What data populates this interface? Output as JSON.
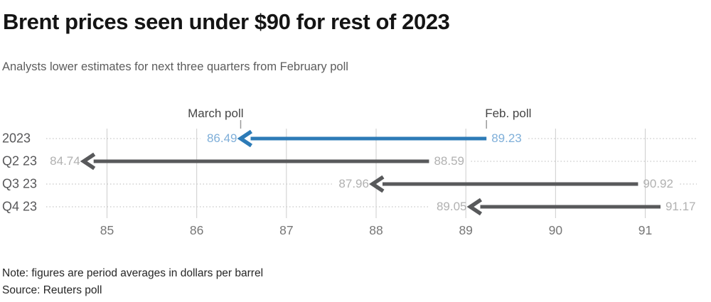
{
  "title": "Brent prices seen under $90 for rest of 2023",
  "subtitle": "Analysts lower estimates for next three quarters from February poll",
  "note": "Note: figures are period averages in dollars per barrel",
  "source": "Source: Reuters poll",
  "colors": {
    "accent": "#2d7bb7",
    "accent_light": "#7fafd9",
    "arrow_gray": "#58595b",
    "value_gray": "#b1b1b1",
    "gridline": "#cdcdcd",
    "dotted_leader": "#c8c8c8",
    "annotation_tick": "#9a9a9a"
  },
  "chart_data": {
    "type": "arrow",
    "title": "Brent prices seen under $90 for rest of 2023",
    "subtitle": "Analysts lower estimates for next three quarters from February poll",
    "categories": [
      "2023",
      "Q2 23",
      "Q3 23",
      "Q4 23"
    ],
    "series": [
      {
        "name": "March poll",
        "values": [
          86.49,
          84.74,
          87.96,
          89.05
        ]
      },
      {
        "name": "Feb. poll",
        "values": [
          89.23,
          88.59,
          90.92,
          91.17
        ]
      }
    ],
    "direction": "arrows point from Feb. poll value left to March poll value",
    "highlight_index": 0,
    "xlim": [
      85,
      91
    ],
    "x_ticks": [
      85,
      86,
      87,
      88,
      89,
      90,
      91
    ],
    "grid": "vertical",
    "units": "dollars per barrel",
    "annotations": [
      {
        "label": "March poll",
        "row": "2023",
        "value": 86.49,
        "align": "right"
      },
      {
        "label": "Feb. poll",
        "row": "2023",
        "value": 89.23,
        "align": "left"
      }
    ]
  }
}
